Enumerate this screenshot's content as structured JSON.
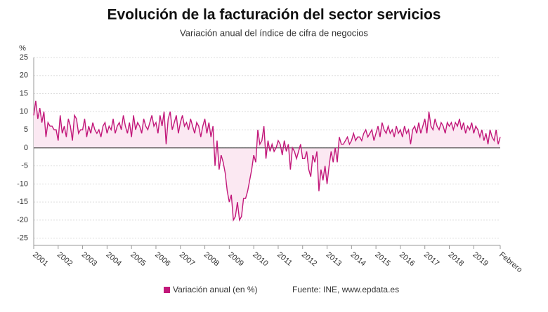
{
  "chart_data": {
    "type": "area-line",
    "title": "Evolución de la facturación del sector servicios",
    "subtitle": "Variación anual del índice de cifra de negocios",
    "y_unit": "%",
    "source": "Fuente: INE, www.epdata.es",
    "categories": [
      "2001",
      null,
      null,
      null,
      null,
      null,
      null,
      null,
      null,
      null,
      null,
      null,
      "2002",
      null,
      null,
      null,
      null,
      null,
      null,
      null,
      null,
      null,
      null,
      null,
      "2003",
      null,
      null,
      null,
      null,
      null,
      null,
      null,
      null,
      null,
      null,
      null,
      "2004",
      null,
      null,
      null,
      null,
      null,
      null,
      null,
      null,
      null,
      null,
      null,
      "2005",
      null,
      null,
      null,
      null,
      null,
      null,
      null,
      null,
      null,
      null,
      null,
      "2006",
      null,
      null,
      null,
      null,
      null,
      null,
      null,
      null,
      null,
      null,
      null,
      "2007",
      null,
      null,
      null,
      null,
      null,
      null,
      null,
      null,
      null,
      null,
      null,
      "2008",
      null,
      null,
      null,
      null,
      null,
      null,
      null,
      null,
      null,
      null,
      null,
      "2009",
      null,
      null,
      null,
      null,
      null,
      null,
      null,
      null,
      null,
      null,
      null,
      "2010",
      null,
      null,
      null,
      null,
      null,
      null,
      null,
      null,
      null,
      null,
      null,
      "2011",
      null,
      null,
      null,
      null,
      null,
      null,
      null,
      null,
      null,
      null,
      null,
      "2012",
      null,
      null,
      null,
      null,
      null,
      null,
      null,
      null,
      null,
      null,
      null,
      "2013",
      null,
      null,
      null,
      null,
      null,
      null,
      null,
      null,
      null,
      null,
      null,
      "2014",
      null,
      null,
      null,
      null,
      null,
      null,
      null,
      null,
      null,
      null,
      null,
      "2015",
      null,
      null,
      null,
      null,
      null,
      null,
      null,
      null,
      null,
      null,
      null,
      "2016",
      null,
      null,
      null,
      null,
      null,
      null,
      null,
      null,
      null,
      null,
      null,
      "2017",
      null,
      null,
      null,
      null,
      null,
      null,
      null,
      null,
      null,
      null,
      null,
      "2018",
      null,
      null,
      null,
      null,
      null,
      null,
      null,
      null,
      null,
      null,
      null,
      "2019",
      null,
      null,
      null,
      null,
      null,
      null,
      null,
      null,
      null,
      null,
      null,
      null,
      "Febrero"
    ],
    "series": [
      {
        "name": "Variación anual (en %)",
        "color": "#c2187a",
        "fill": "#fbe8f2",
        "values": [
          9,
          13,
          8,
          11,
          7,
          10,
          3,
          7,
          6,
          6,
          5,
          5,
          2,
          9,
          4,
          6,
          3,
          8,
          6,
          2,
          9,
          8,
          4,
          5,
          5,
          8,
          3,
          6,
          4,
          7,
          5,
          4,
          5,
          3,
          6,
          7,
          4,
          6,
          5,
          8,
          4,
          6,
          7,
          5,
          9,
          6,
          4,
          7,
          3,
          9,
          5,
          7,
          6,
          4,
          8,
          6,
          5,
          7,
          9,
          6,
          7,
          4,
          9,
          6,
          10,
          1,
          8,
          10,
          5,
          7,
          9,
          4,
          7,
          9,
          6,
          7,
          5,
          8,
          6,
          4,
          7,
          6,
          3,
          6,
          8,
          4,
          7,
          3,
          6,
          -5,
          2,
          -6,
          -2,
          -4,
          -7,
          -12,
          -15,
          -13,
          -20,
          -19,
          -15,
          -20,
          -19,
          -14,
          -14,
          -12,
          -9,
          -6,
          -2,
          -4,
          5,
          1,
          2,
          6,
          -3,
          2,
          -1,
          1,
          -1,
          0,
          2,
          1,
          -2,
          2,
          -1,
          1,
          -6,
          0,
          -1,
          -3,
          -1,
          1,
          -3,
          -3,
          -1,
          -6,
          -8,
          -2,
          -4,
          -1,
          -12,
          -6,
          -9,
          -5,
          -10,
          -5,
          -1,
          -4,
          0,
          -4,
          3,
          1,
          1,
          2,
          3,
          1,
          2,
          4,
          2,
          3,
          3,
          2,
          4,
          5,
          3,
          4,
          5,
          2,
          4,
          6,
          3,
          7,
          5,
          4,
          6,
          4,
          5,
          3,
          6,
          4,
          5,
          3,
          6,
          4,
          5,
          1,
          5,
          6,
          4,
          7,
          4,
          6,
          8,
          4,
          10,
          6,
          5,
          8,
          6,
          5,
          7,
          6,
          4,
          7,
          6,
          7,
          5,
          7,
          6,
          8,
          5,
          7,
          4,
          6,
          5,
          7,
          4,
          6,
          5,
          3,
          5,
          2,
          4,
          1,
          5,
          3,
          2,
          5,
          1,
          3
        ]
      }
    ],
    "ylim": [
      -27,
      25
    ],
    "yticks": [
      -25,
      -20,
      -15,
      -10,
      -5,
      0,
      5,
      10,
      15,
      20,
      25
    ],
    "grid": true
  }
}
